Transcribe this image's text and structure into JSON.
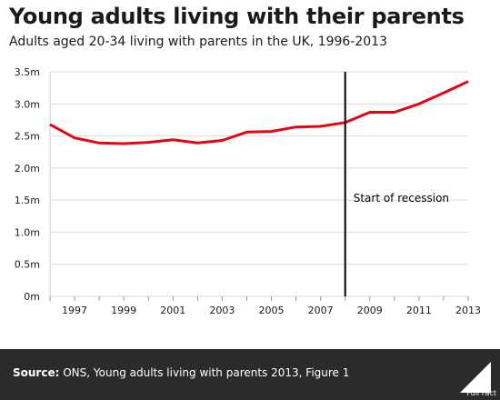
{
  "header": {
    "title": "Young adults living with their parents",
    "subtitle": "Adults aged 20-34 living with parents in the UK, 1996-2013"
  },
  "chart_data": {
    "type": "line",
    "title": "Young adults living with their parents",
    "subtitle": "Adults aged 20-34 living with parents in the UK, 1996-2013",
    "xlabel": "",
    "ylabel": "",
    "x": [
      1996,
      1997,
      1998,
      1999,
      2000,
      2001,
      2002,
      2003,
      2004,
      2005,
      2006,
      2007,
      2008,
      2009,
      2010,
      2011,
      2012,
      2013
    ],
    "series": [
      {
        "values": [
          2.68,
          2.47,
          2.39,
          2.38,
          2.4,
          2.44,
          2.39,
          2.43,
          2.56,
          2.57,
          2.64,
          2.65,
          2.71,
          2.87,
          2.87,
          3.0,
          3.17,
          3.35
        ]
      }
    ],
    "xlim": [
      1996,
      2013
    ],
    "ylim": [
      0,
      3.5
    ],
    "y_unit": "m",
    "yticks": [
      0,
      0.5,
      1.0,
      1.5,
      2.0,
      2.5,
      3.0,
      3.5
    ],
    "ytick_labels": [
      "0m",
      "0.5m",
      "1.0m",
      "1.5m",
      "2.0m",
      "2.5m",
      "3.0m",
      "3.5m"
    ],
    "xtick_labels": [
      "1997",
      "1999",
      "2001",
      "2003",
      "2005",
      "2007",
      "2009",
      "2011",
      "2013"
    ],
    "grid": true,
    "legend": "none",
    "annotations": [
      {
        "type": "vertical-line",
        "x": 2008,
        "label": "Start of recession"
      }
    ],
    "colors": {
      "line": "#e30613",
      "grid": "#d9d9d9",
      "annotation": "#000000"
    }
  },
  "footer": {
    "source_label": "Source:",
    "source_text": "ONS, Young adults living with parents 2013, Figure 1",
    "logo_text": "Full Fact",
    "background": "#2b2b2b"
  }
}
